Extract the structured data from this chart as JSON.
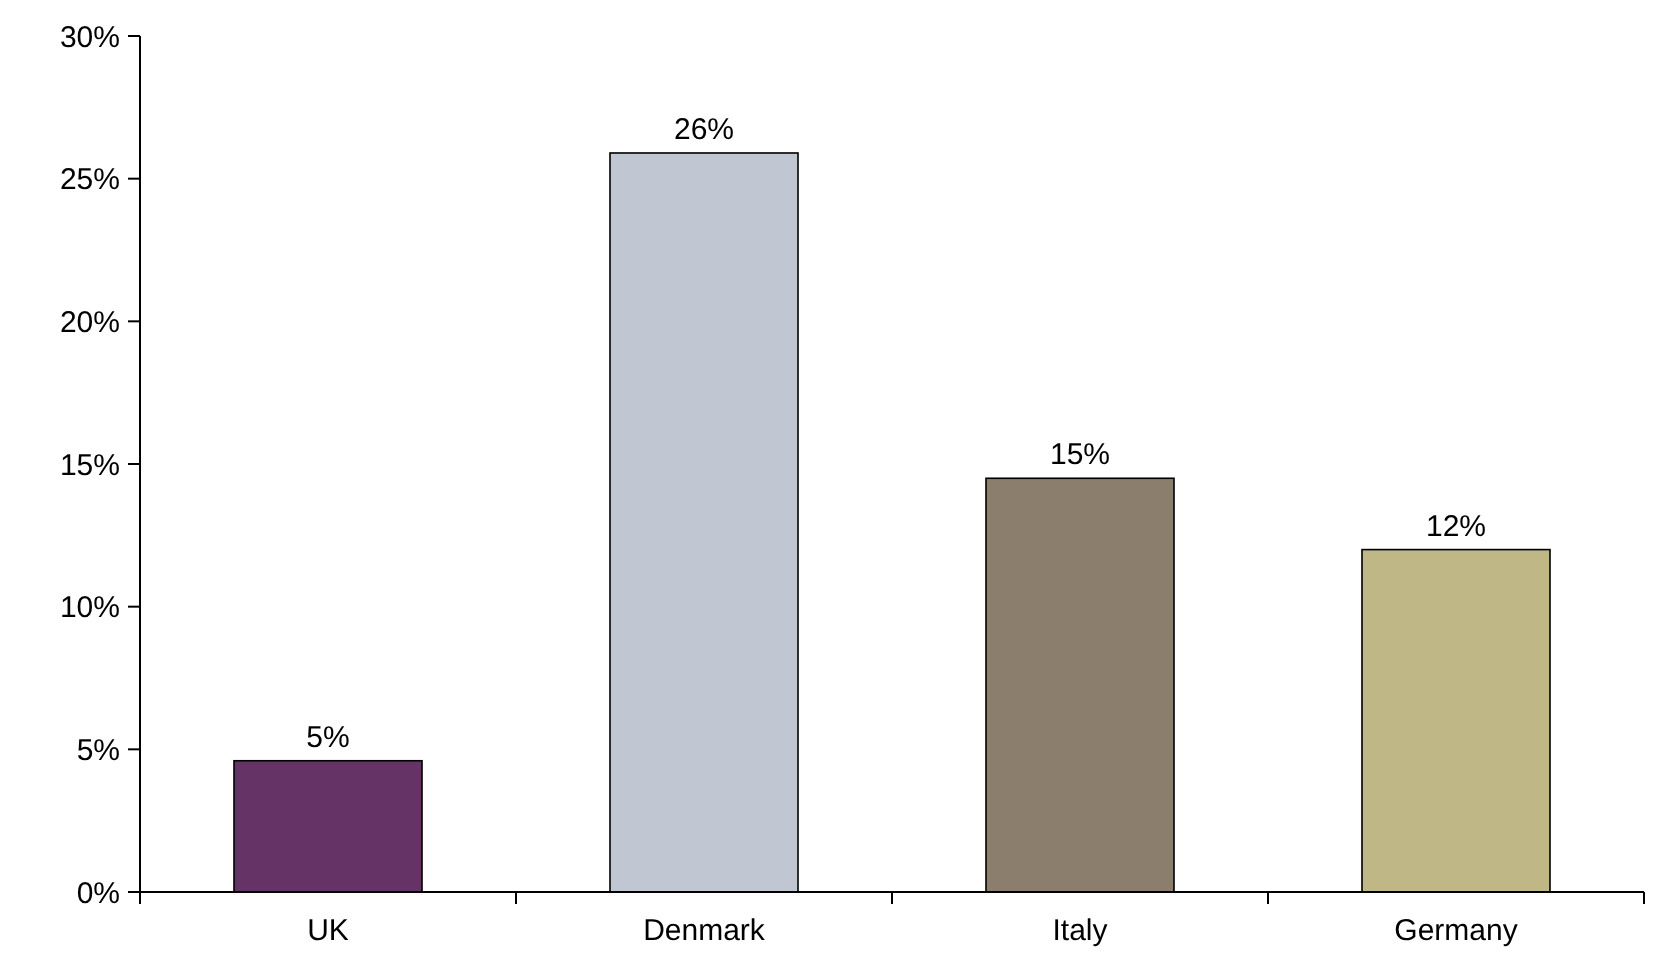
{
  "chart_data": {
    "type": "bar",
    "categories": [
      "UK",
      "Denmark",
      "Italy",
      "Germany"
    ],
    "values": [
      4.6,
      25.9,
      14.5,
      12.0
    ],
    "colors": [
      "#663366",
      "#c0c6d2",
      "#8b7e6c",
      "#bfb886"
    ],
    "value_labels": [
      "5%",
      "26%",
      "15%",
      "12%"
    ],
    "ylim": [
      0,
      30
    ],
    "yticks": [
      {
        "value": 0,
        "label": "0%"
      },
      {
        "value": 5,
        "label": "5%"
      },
      {
        "value": 10,
        "label": "10%"
      },
      {
        "value": 15,
        "label": "15%"
      },
      {
        "value": 20,
        "label": "20%"
      },
      {
        "value": 25,
        "label": "25%"
      },
      {
        "value": 30,
        "label": "30%"
      }
    ],
    "grid": false
  }
}
